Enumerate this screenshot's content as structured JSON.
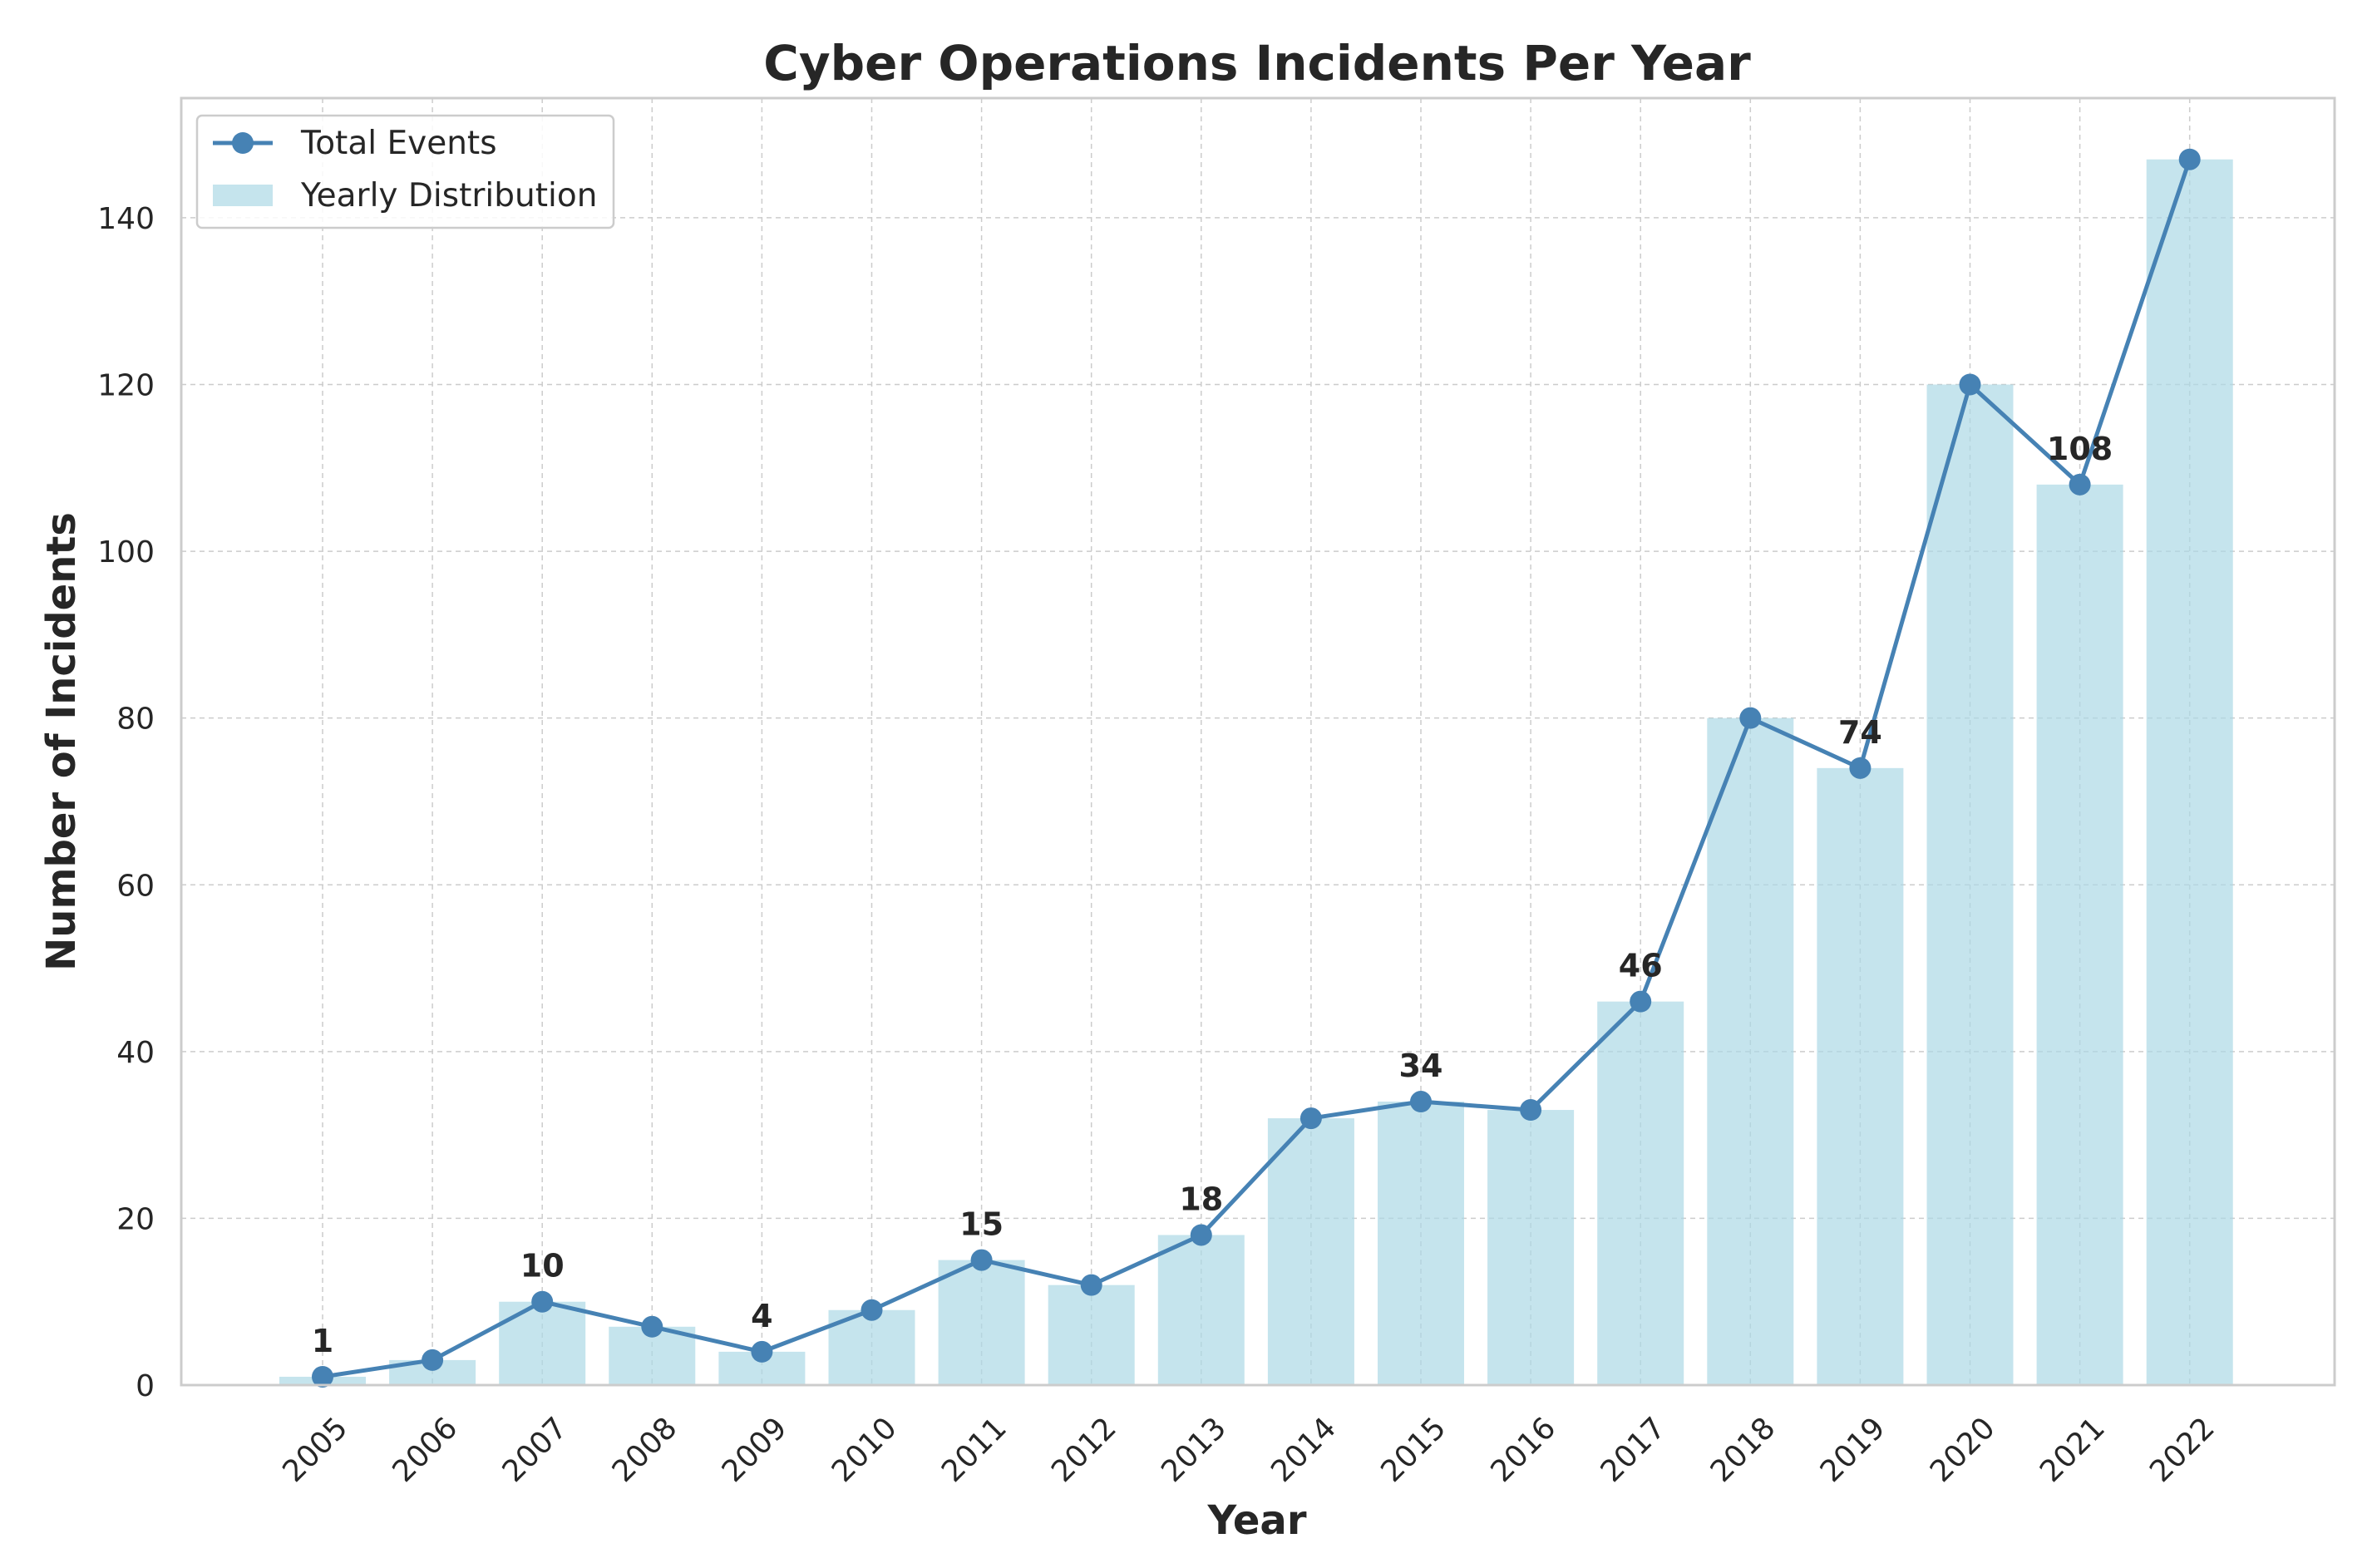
{
  "chart_data": {
    "type": "bar",
    "title": "Cyber Operations Incidents Per Year",
    "xlabel": "Year",
    "ylabel": "Number of Incidents",
    "categories": [
      "2005",
      "2006",
      "2007",
      "2008",
      "2009",
      "2010",
      "2011",
      "2012",
      "2013",
      "2014",
      "2015",
      "2016",
      "2017",
      "2018",
      "2019",
      "2020",
      "2021",
      "2022"
    ],
    "series": [
      {
        "name": "Yearly Distribution",
        "type": "bar",
        "color": "#add8e6",
        "values": [
          1,
          3,
          10,
          7,
          4,
          9,
          15,
          12,
          18,
          32,
          34,
          33,
          46,
          80,
          74,
          120,
          108,
          147
        ]
      },
      {
        "name": "Total Events",
        "type": "line",
        "color": "#4682b4",
        "values": [
          1,
          3,
          10,
          7,
          4,
          9,
          15,
          12,
          18,
          32,
          34,
          33,
          46,
          80,
          74,
          120,
          108,
          147
        ]
      }
    ],
    "annotations": [
      {
        "category": "2005",
        "value": 1,
        "text": "1"
      },
      {
        "category": "2007",
        "value": 10,
        "text": "10"
      },
      {
        "category": "2009",
        "value": 4,
        "text": "4"
      },
      {
        "category": "2011",
        "value": 15,
        "text": "15"
      },
      {
        "category": "2013",
        "value": 18,
        "text": "18"
      },
      {
        "category": "2015",
        "value": 34,
        "text": "34"
      },
      {
        "category": "2017",
        "value": 46,
        "text": "46"
      },
      {
        "category": "2019",
        "value": 74,
        "text": "74"
      },
      {
        "category": "2021",
        "value": 108,
        "text": "108"
      }
    ],
    "yticks": [
      0,
      20,
      40,
      60,
      80,
      100,
      120,
      140
    ],
    "ylim": [
      0,
      154.35
    ],
    "grid": true,
    "legend_position": "top-left",
    "legend": [
      "Total Events",
      "Yearly Distribution"
    ]
  }
}
